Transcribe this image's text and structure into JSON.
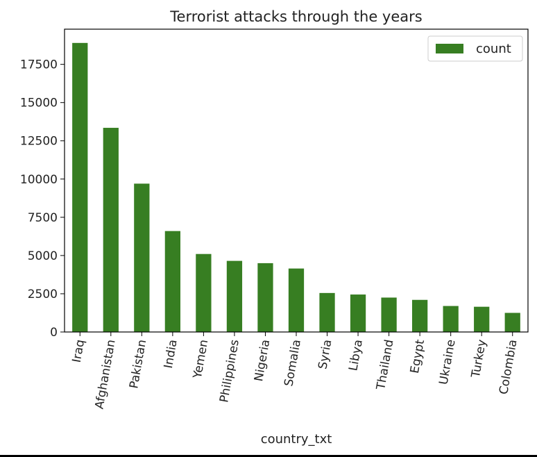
{
  "chart_data": {
    "type": "bar",
    "title": "Terrorist attacks through the years",
    "xlabel": "country_txt",
    "ylabel": "",
    "categories": [
      "Iraq",
      "Afghanistan",
      "Pakistan",
      "India",
      "Yemen",
      "Philippines",
      "Nigeria",
      "Somalia",
      "Syria",
      "Libya",
      "Thailand",
      "Egypt",
      "Ukraine",
      "Turkey",
      "Colombia"
    ],
    "series": [
      {
        "name": "count",
        "color": "#377e22",
        "values": [
          18900,
          13350,
          9700,
          6600,
          5100,
          4650,
          4500,
          4150,
          2550,
          2450,
          2250,
          2100,
          1700,
          1650,
          1250
        ]
      }
    ],
    "ylim": [
      0,
      19800
    ],
    "yticks": [
      0,
      2500,
      5000,
      7500,
      10000,
      12500,
      15000,
      17500
    ],
    "grid": false,
    "legend": "top-right"
  }
}
